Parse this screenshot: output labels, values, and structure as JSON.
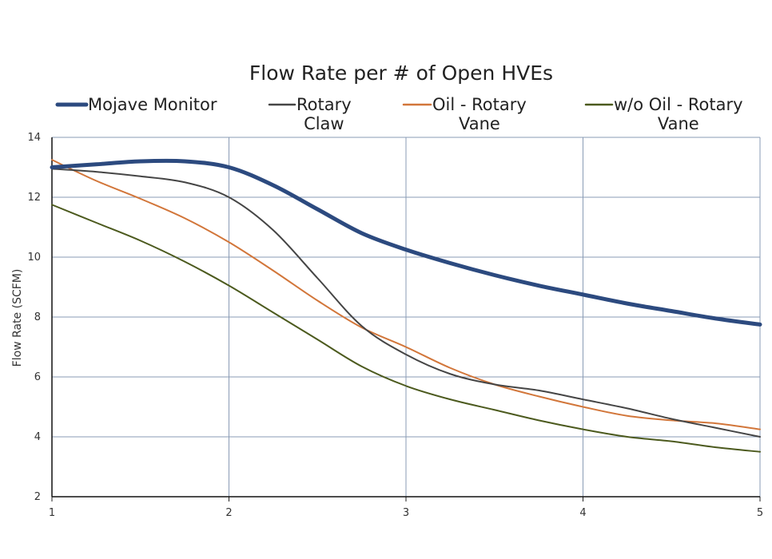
{
  "chart_data": {
    "type": "line",
    "title": "Flow Rate per # of Open HVEs",
    "xlabel": "",
    "ylabel": "Flow Rate (SCFM)",
    "xlim": [
      1,
      5
    ],
    "ylim": [
      2,
      14
    ],
    "x_ticks": [
      "1",
      "2",
      "3",
      "4",
      "5"
    ],
    "y_ticks": [
      "2",
      "4",
      "6",
      "8",
      "10",
      "12",
      "14"
    ],
    "grid": true,
    "legend_position": "top",
    "series": [
      {
        "name": "Mojave Monitor",
        "label_lines": [
          "Mojave Monitor"
        ],
        "color": "#2c4a7f",
        "x": [
          1,
          1.25,
          1.5,
          1.75,
          2,
          2.25,
          2.5,
          2.75,
          3,
          3.25,
          3.5,
          3.75,
          4,
          4.25,
          4.5,
          4.75,
          5
        ],
        "y": [
          13.0,
          13.1,
          13.2,
          13.2,
          13.0,
          12.4,
          11.6,
          10.8,
          10.25,
          9.8,
          9.4,
          9.05,
          8.75,
          8.45,
          8.2,
          7.95,
          7.75
        ]
      },
      {
        "name": "Rotary Claw",
        "label_lines": [
          "Rotary",
          "Claw"
        ],
        "color": "#454545",
        "x": [
          1,
          1.25,
          1.5,
          1.75,
          2,
          2.25,
          2.5,
          2.75,
          3,
          3.25,
          3.5,
          3.75,
          4,
          4.25,
          4.5,
          4.75,
          5
        ],
        "y": [
          12.95,
          12.85,
          12.7,
          12.5,
          12.0,
          10.9,
          9.3,
          7.7,
          6.75,
          6.1,
          5.75,
          5.55,
          5.25,
          4.95,
          4.6,
          4.3,
          4.0
        ]
      },
      {
        "name": "Oil - Rotary Vane",
        "label_lines": [
          "Oil - Rotary",
          "Vane"
        ],
        "color": "#d2763a",
        "x": [
          1,
          1.25,
          1.5,
          1.75,
          2,
          2.25,
          2.5,
          2.75,
          3,
          3.25,
          3.5,
          3.75,
          4,
          4.25,
          4.5,
          4.75,
          5
        ],
        "y": [
          13.25,
          12.55,
          11.95,
          11.3,
          10.5,
          9.55,
          8.55,
          7.65,
          7.0,
          6.3,
          5.75,
          5.35,
          5.0,
          4.7,
          4.55,
          4.45,
          4.25
        ]
      },
      {
        "name": "w/o Oil - Rotary Vane",
        "label_lines": [
          "w/o Oil - Rotary",
          "Vane"
        ],
        "color": "#4c5a1e",
        "x": [
          1,
          1.25,
          1.5,
          1.75,
          2,
          2.25,
          2.5,
          2.75,
          3,
          3.25,
          3.5,
          3.75,
          4,
          4.25,
          4.5,
          4.75,
          5
        ],
        "y": [
          11.75,
          11.15,
          10.55,
          9.85,
          9.05,
          8.15,
          7.25,
          6.35,
          5.7,
          5.25,
          4.9,
          4.55,
          4.25,
          4.0,
          3.85,
          3.65,
          3.5
        ]
      }
    ]
  }
}
